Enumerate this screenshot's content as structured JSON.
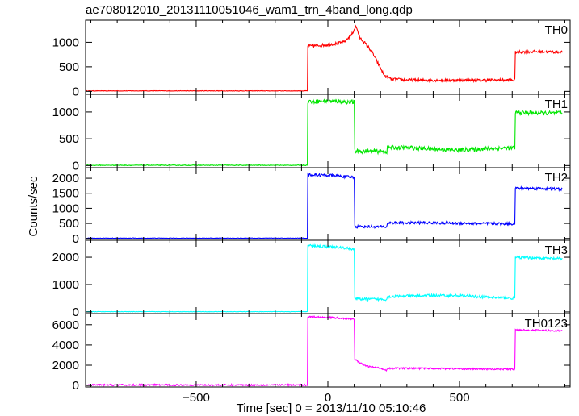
{
  "chart_data": {
    "type": "line",
    "title": "ae708012010_20131110051046_wam1_trn_4band_long.qdp",
    "xlabel": "Time [sec] 0 = 2013/11/10 05:10:46",
    "ylabel": "Counts/sec",
    "xlim": [
      -920,
      920
    ],
    "xticks": [
      -500,
      0,
      500
    ],
    "xtick_labels": [
      "−500",
      "0",
      "500"
    ],
    "panels": [
      {
        "name": "TH0",
        "color": "#ff0000",
        "ylim": [
          -60,
          1450
        ],
        "yticks": [
          0,
          500,
          1000
        ],
        "ytick_labels": [
          "0",
          "500",
          "1000"
        ],
        "noise": 30,
        "x": [
          -920,
          -78,
          -77,
          0,
          60,
          90,
          105,
          112,
          120,
          150,
          170,
          195,
          215,
          240,
          300,
          500,
          710,
          711,
          800,
          890
        ],
        "y": [
          10,
          10,
          920,
          950,
          1000,
          1150,
          1320,
          1260,
          1100,
          930,
          780,
          520,
          320,
          250,
          230,
          225,
          230,
          800,
          810,
          800
        ]
      },
      {
        "name": "TH1",
        "color": "#00e600",
        "ylim": [
          -40,
          1330
        ],
        "yticks": [
          0,
          500,
          1000
        ],
        "ytick_labels": [
          "0",
          "500",
          "1000"
        ],
        "noise": 40,
        "x": [
          -920,
          -78,
          -77,
          20,
          100,
          101,
          180,
          225,
          226,
          300,
          400,
          500,
          600,
          710,
          711,
          800,
          890
        ],
        "y": [
          5,
          5,
          1200,
          1200,
          1185,
          270,
          265,
          260,
          335,
          335,
          310,
          290,
          315,
          330,
          990,
          980,
          975
        ],
        "dips": []
      },
      {
        "name": "TH2",
        "color": "#0000ff",
        "ylim": [
          -60,
          2350
        ],
        "yticks": [
          0,
          500,
          1000,
          1500,
          2000
        ],
        "ytick_labels": [
          "0",
          "500",
          "1000",
          "1500",
          "2000"
        ],
        "noise": 45,
        "x": [
          -920,
          -78,
          -77,
          20,
          100,
          101,
          225,
          226,
          400,
          600,
          710,
          711,
          800,
          890
        ],
        "y": [
          10,
          10,
          2120,
          2090,
          2030,
          400,
          385,
          520,
          520,
          495,
          490,
          1670,
          1660,
          1640
        ]
      },
      {
        "name": "TH3",
        "color": "#00ffff",
        "ylim": [
          -60,
          2620
        ],
        "yticks": [
          0,
          1000,
          2000
        ],
        "ytick_labels": [
          "0",
          "1000",
          "2000"
        ],
        "noise": 50,
        "x": [
          -920,
          -78,
          -77,
          20,
          100,
          101,
          225,
          226,
          400,
          500,
          600,
          710,
          711,
          800,
          890
        ],
        "y": [
          10,
          10,
          2420,
          2380,
          2300,
          470,
          465,
          560,
          600,
          595,
          540,
          500,
          2000,
          1970,
          1940
        ]
      },
      {
        "name": "TH0123",
        "color": "#ff00ff",
        "ylim": [
          -150,
          7100
        ],
        "yticks": [
          0,
          2000,
          4000,
          6000
        ],
        "ytick_labels": [
          "0",
          "2000",
          "4000",
          "6000"
        ],
        "noise": 80,
        "x": [
          -920,
          -78,
          -77,
          20,
          100,
          101,
          130,
          150,
          200,
          225,
          226,
          400,
          600,
          710,
          711,
          800,
          890
        ],
        "y": [
          50,
          50,
          6800,
          6700,
          6550,
          2600,
          2100,
          1900,
          1700,
          1500,
          1700,
          1680,
          1620,
          1600,
          5500,
          5450,
          5400
        ]
      }
    ]
  }
}
